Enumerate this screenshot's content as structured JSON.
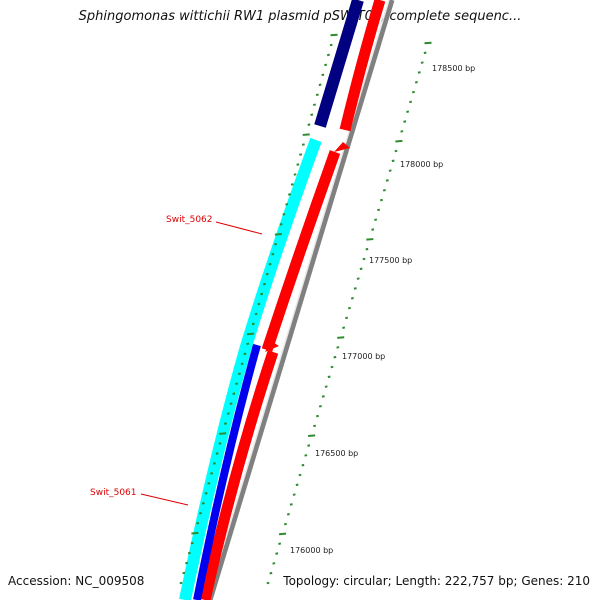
{
  "title": "Sphingomonas wittichii RW1 plasmid pSWIT02, complete sequenc...",
  "footer": {
    "accession": "Accession: NC_009508",
    "topology": "Topology: circular; Length: 222,757 bp; Genes: 210"
  },
  "scale": {
    "labels": [
      "178500 bp",
      "178000 bp",
      "177500 bp",
      "177000 bp",
      "176500 bp",
      "176000 bp"
    ],
    "tick_color": "#2e8b2e"
  },
  "genes": [
    {
      "name": "Swit_5062",
      "color": "#dd0000"
    },
    {
      "name": "Swit_5061",
      "color": "#dd0000"
    }
  ],
  "colors": {
    "forward_feature_top": "#000080",
    "forward_feature_cyan": "#00ffff",
    "forward_feature_blue": "#0000ee",
    "reverse_feature": "#ff0000",
    "backbone": "#808080",
    "label_red": "#dd0000"
  }
}
